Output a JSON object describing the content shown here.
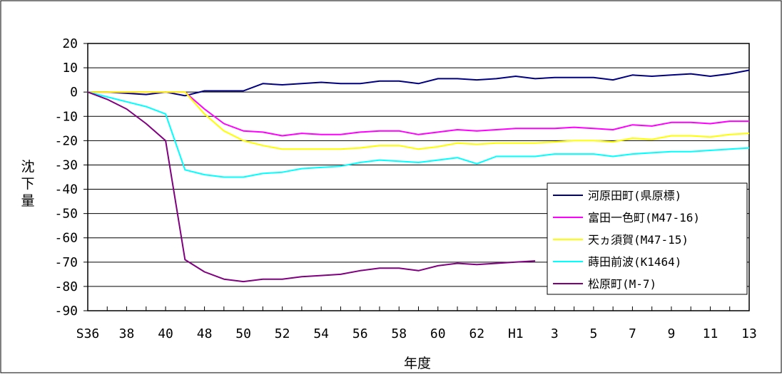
{
  "chart_data": {
    "type": "line",
    "xlabel": "年度",
    "ylabel": "沈下量",
    "ylim": [
      -90,
      20
    ],
    "ytick_step": 10,
    "grid": true,
    "legend_position": "bottom-right",
    "x_ticks": [
      "S36",
      "38",
      "40",
      "48",
      "50",
      "52",
      "54",
      "56",
      "58",
      "60",
      "62",
      "H1",
      "3",
      "5",
      "7",
      "9",
      "11",
      "13"
    ],
    "x_points": 35,
    "series": [
      {
        "name": "河原田町(県原標)",
        "color": "#000080",
        "values": [
          0,
          0,
          -0.5,
          -1,
          0,
          -1.5,
          0.5,
          0.5,
          0.5,
          3.5,
          3,
          3.5,
          4,
          3.5,
          3.5,
          4.5,
          4.5,
          3.5,
          5.5,
          5.5,
          5,
          5.5,
          6.5,
          5.5,
          6,
          6,
          6,
          5,
          7,
          6.5,
          7,
          7.5,
          6.5,
          7.5,
          9
        ]
      },
      {
        "name": "富田一色町(M47-16)",
        "color": "#ff00ff",
        "values": [
          0,
          0,
          0,
          0,
          0,
          0,
          -7,
          -13,
          -16,
          -16.5,
          -18,
          -17,
          -17.5,
          -17.5,
          -16.5,
          -16,
          -16,
          -17.5,
          -16.5,
          -15.5,
          -16,
          -15.5,
          -15,
          -15,
          -15,
          -14.5,
          -15,
          -15.5,
          -13.5,
          -14,
          -12.5,
          -12.5,
          -13,
          -12,
          -12
        ]
      },
      {
        "name": "天ヵ須賀(M47-15)",
        "color": "#ffff00",
        "values": [
          0,
          0,
          0,
          0,
          0,
          0,
          -9,
          -16,
          -20,
          -22,
          -23.5,
          -23.5,
          -23.5,
          -23.5,
          -23,
          -22,
          -22,
          -23.5,
          -22.5,
          -21,
          -21.5,
          -21,
          -21,
          -21,
          -20.5,
          -20,
          -20,
          -20.5,
          -19,
          -19.5,
          -18,
          -18,
          -18.5,
          -17.5,
          -17
        ]
      },
      {
        "name": "蒔田前波(K1464)",
        "color": "#00ffff",
        "values": [
          0,
          -2,
          -4,
          -6,
          -9,
          -32,
          -34,
          -35,
          -35,
          -33.5,
          -33,
          -31.5,
          -31,
          -30.5,
          -29,
          -28,
          -28.5,
          -29,
          -28,
          -27,
          -29.5,
          -26.5,
          -26.5,
          -26.5,
          -25.5,
          -25.5,
          -25.5,
          -26.5,
          -25.5,
          -25,
          -24.5,
          -24.5,
          -24,
          -23.5,
          -23
        ]
      },
      {
        "name": "松原町(M-7)",
        "color": "#800080",
        "values": [
          0,
          -3,
          -7,
          -13,
          -20,
          -69,
          -74,
          -77,
          -78,
          -77,
          -77,
          -76,
          -75.5,
          -75,
          -73.5,
          -72.5,
          -72.5,
          -73.5,
          -71.5,
          -70.5,
          -71,
          -70.5,
          -70,
          -69.5,
          null,
          null,
          null,
          null,
          null,
          null,
          null,
          null,
          null,
          null,
          null
        ]
      }
    ]
  }
}
